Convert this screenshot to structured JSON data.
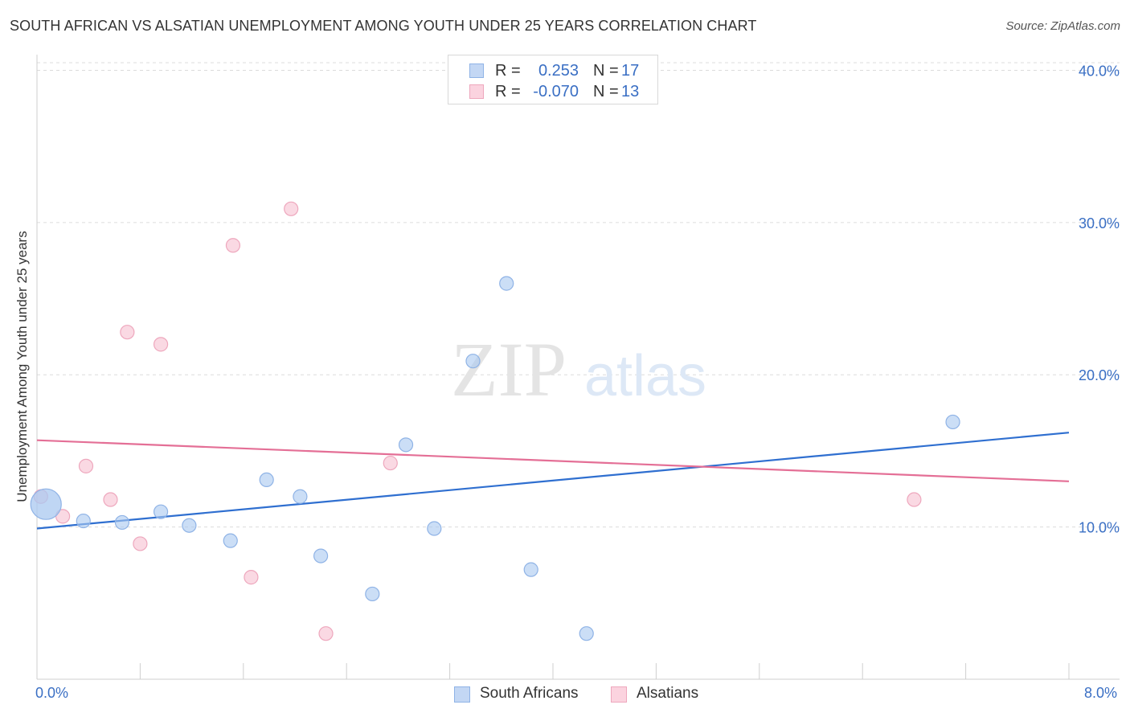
{
  "chart_data": {
    "type": "scatter",
    "title": "SOUTH AFRICAN VS ALSATIAN UNEMPLOYMENT AMONG YOUTH UNDER 25 YEARS CORRELATION CHART",
    "source": "Source: ZipAtlas.com",
    "xlabel": "",
    "ylabel": "Unemployment Among Youth under 25 years",
    "xlim": [
      0,
      8
    ],
    "ylim": [
      0,
      40.5
    ],
    "x_tick_labels": [
      {
        "value": 0,
        "label": "0.0%"
      },
      {
        "value": 8,
        "label": "8.0%"
      }
    ],
    "y_tick_labels": [
      {
        "value": 10,
        "label": "10.0%"
      },
      {
        "value": 20,
        "label": "20.0%"
      },
      {
        "value": 30,
        "label": "30.0%"
      },
      {
        "value": 40,
        "label": "40.0%"
      }
    ],
    "grid": true,
    "watermark": {
      "zip": "ZIP",
      "atlas": "atlas"
    },
    "legend": {
      "r_label": "R =",
      "n_label": "N ="
    },
    "series": [
      {
        "name": "South Africans",
        "color": "#a9c8f0",
        "stroke": "#8fb3e6",
        "line_color": "#2f6fd0",
        "R": "0.253",
        "N": "17",
        "trend": {
          "x0": 0,
          "y0": 9.9,
          "x1": 8,
          "y1": 16.2
        },
        "points": [
          {
            "x": 0.07,
            "y": 11.5,
            "big": true
          },
          {
            "x": 0.36,
            "y": 10.4
          },
          {
            "x": 0.66,
            "y": 10.3
          },
          {
            "x": 0.96,
            "y": 11.0
          },
          {
            "x": 1.18,
            "y": 10.1
          },
          {
            "x": 1.5,
            "y": 9.1
          },
          {
            "x": 1.78,
            "y": 13.1
          },
          {
            "x": 2.04,
            "y": 12.0
          },
          {
            "x": 2.2,
            "y": 8.1
          },
          {
            "x": 2.6,
            "y": 5.6
          },
          {
            "x": 2.86,
            "y": 15.4
          },
          {
            "x": 3.08,
            "y": 9.9
          },
          {
            "x": 3.38,
            "y": 20.9
          },
          {
            "x": 3.64,
            "y": 26.0
          },
          {
            "x": 3.83,
            "y": 7.2
          },
          {
            "x": 4.26,
            "y": 3.0
          },
          {
            "x": 7.1,
            "y": 16.9
          }
        ]
      },
      {
        "name": "Alsatians",
        "color": "#f7c0d0",
        "stroke": "#eea7bd",
        "line_color": "#e46f96",
        "R": "-0.070",
        "N": "13",
        "trend": {
          "x0": 0,
          "y0": 15.7,
          "x1": 8,
          "y1": 13.0
        },
        "points": [
          {
            "x": 0.03,
            "y": 12.0
          },
          {
            "x": 0.2,
            "y": 10.7
          },
          {
            "x": 0.38,
            "y": 14.0
          },
          {
            "x": 0.57,
            "y": 11.8
          },
          {
            "x": 0.7,
            "y": 22.8
          },
          {
            "x": 0.8,
            "y": 8.9
          },
          {
            "x": 0.96,
            "y": 22.0
          },
          {
            "x": 1.52,
            "y": 28.5
          },
          {
            "x": 1.66,
            "y": 6.7
          },
          {
            "x": 1.97,
            "y": 30.9
          },
          {
            "x": 2.24,
            "y": 3.0
          },
          {
            "x": 2.74,
            "y": 14.2
          },
          {
            "x": 6.8,
            "y": 11.8
          }
        ]
      }
    ]
  }
}
